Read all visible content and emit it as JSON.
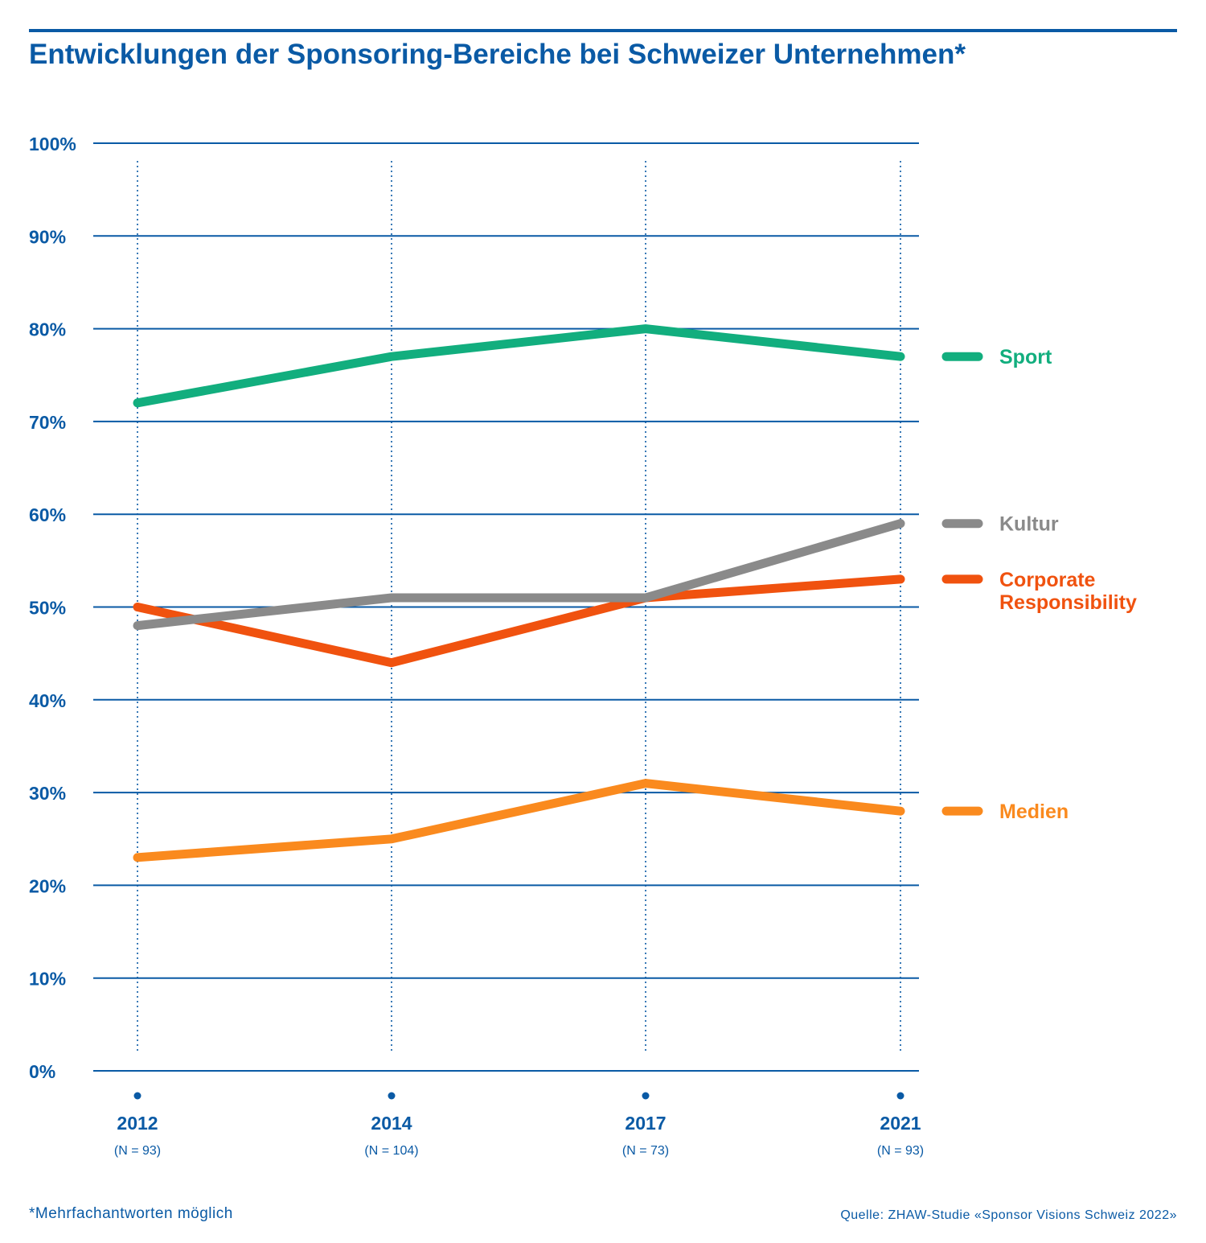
{
  "header": {
    "title": "Entwicklungen der Sponsoring-Bereiche bei Schweizer Unternehmen*"
  },
  "footer": {
    "note": "*Mehrfachantworten möglich",
    "source": "Quelle: ZHAW-Studie «Sponsor Visions Schweiz 2022»"
  },
  "colors": {
    "brand_blue": "#0a5aa5",
    "sport": "#12ae7e",
    "kultur": "#8a8a8a",
    "corporate_responsibility": "#f0520f",
    "medien": "#fa8a1e"
  },
  "chart_data": {
    "type": "line",
    "title": "Entwicklungen der Sponsoring-Bereiche bei Schweizer Unternehmen*",
    "x": [
      "2012",
      "2014",
      "2017",
      "2021"
    ],
    "x_sublabels": [
      "(N = 93)",
      "(N = 104)",
      "(N = 73)",
      "(N = 93)"
    ],
    "y_ticks": [
      "0%",
      "10%",
      "20%",
      "30%",
      "40%",
      "50%",
      "60%",
      "70%",
      "80%",
      "90%",
      "100%"
    ],
    "ylim": [
      0,
      100
    ],
    "grid": true,
    "legend_placement": "right",
    "series": [
      {
        "name": "Sport",
        "color": "#12ae7e",
        "values": [
          72,
          77,
          80,
          77
        ]
      },
      {
        "name": "Kultur",
        "color": "#8a8a8a",
        "values": [
          48,
          51,
          51,
          59
        ]
      },
      {
        "name": "Corporate Responsibility",
        "color": "#f0520f",
        "label_lines": [
          "Corporate",
          "Responsibility"
        ],
        "values": [
          50,
          44,
          51,
          53
        ]
      },
      {
        "name": "Medien",
        "color": "#fa8a1e",
        "values": [
          23,
          25,
          31,
          28
        ]
      }
    ]
  }
}
